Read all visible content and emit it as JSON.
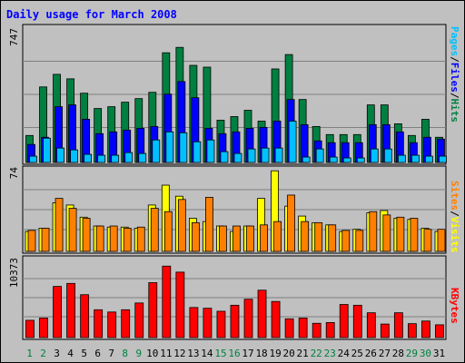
{
  "title": "Daily usage for March 2008",
  "max_labels": {
    "hits": "747",
    "visits": "74",
    "kbytes": "10373"
  },
  "legend": {
    "top": [
      {
        "text": "Pages",
        "color": "#00c0ff"
      },
      {
        "text": "/",
        "color": "#000000"
      },
      {
        "text": "Files",
        "color": "#0000ff"
      },
      {
        "text": "/",
        "color": "#000000"
      },
      {
        "text": "Hits",
        "color": "#008040"
      }
    ],
    "middle": [
      {
        "text": "Sites",
        "color": "#ff8000"
      },
      {
        "text": "/",
        "color": "#000000"
      },
      {
        "text": "Visits",
        "color": "#ffff00"
      }
    ],
    "bottom": [
      {
        "text": "KBytes",
        "color": "#ff0000"
      }
    ]
  },
  "colors": {
    "hits": "#008040",
    "files": "#0000ff",
    "pages": "#00c0ff",
    "visits": "#ffff00",
    "sites": "#ff8000",
    "kbytes": "#ff0000",
    "weekend": "#008040",
    "weekday": "#000000"
  },
  "chart_data": {
    "type": "bar",
    "categories": [
      "1",
      "2",
      "3",
      "4",
      "5",
      "6",
      "7",
      "8",
      "9",
      "10",
      "11",
      "12",
      "13",
      "14",
      "15",
      "16",
      "17",
      "18",
      "19",
      "20",
      "21",
      "22",
      "23",
      "24",
      "25",
      "26",
      "27",
      "28",
      "29",
      "30",
      "31"
    ],
    "weekend_days": [
      "1",
      "2",
      "8",
      "9",
      "15",
      "16",
      "22",
      "23",
      "29",
      "30"
    ],
    "panels": [
      {
        "name": "hits-files-pages",
        "ylim": [
          0,
          747
        ],
        "series": [
          {
            "name": "Hits",
            "values": [
              150,
              420,
              490,
              465,
              385,
              300,
              310,
              335,
              355,
              390,
              610,
              640,
              540,
              530,
              235,
              255,
              290,
              230,
              520,
              600,
              350,
              200,
              155,
              155,
              155,
              320,
              320,
              215,
              150,
              240,
              140
            ]
          },
          {
            "name": "Files",
            "values": [
              100,
              140,
              310,
              320,
              240,
              160,
              170,
              180,
              190,
              200,
              380,
              450,
              360,
              190,
              160,
              170,
              190,
              195,
              230,
              350,
              210,
              120,
              110,
              110,
              110,
              210,
              210,
              170,
              110,
              140,
              130
            ]
          },
          {
            "name": "Pages",
            "values": [
              35,
              135,
              80,
              70,
              45,
              40,
              40,
              55,
              50,
              125,
              170,
              165,
              115,
              125,
              60,
              50,
              75,
              80,
              80,
              230,
              30,
              75,
              30,
              25,
              25,
              75,
              75,
              40,
              40,
              35,
              35
            ]
          }
        ]
      },
      {
        "name": "sites-visits",
        "ylim": [
          0,
          74
        ],
        "series": [
          {
            "name": "Visits",
            "values": [
              18,
              21,
              44,
              42,
              31,
              23,
              22,
              22,
              21,
              42,
              60,
              50,
              30,
              27,
              23,
              18,
              23,
              48,
              73,
              41,
              32,
              26,
              24,
              18,
              20,
              35,
              37,
              30,
              29,
              21,
              18
            ]
          },
          {
            "name": "Sites",
            "values": [
              19,
              21,
              48,
              39,
              30,
              23,
              23,
              21,
              22,
              39,
              36,
              47,
              26,
              49,
              23,
              23,
              23,
              24,
              27,
              51,
              27,
              26,
              24,
              19,
              19,
              36,
              33,
              31,
              30,
              20,
              20
            ]
          }
        ]
      },
      {
        "name": "kbytes",
        "ylim": [
          0,
          10373
        ],
        "series": [
          {
            "name": "KBytes",
            "values": [
              2300,
              2600,
              6800,
              7200,
              5700,
              3700,
              3400,
              3700,
              4600,
              7300,
              9500,
              8700,
              4000,
              3900,
              3500,
              4300,
              5100,
              6300,
              4800,
              2500,
              2600,
              1900,
              2000,
              4400,
              4300,
              3300,
              1800,
              3300,
              1850,
              2200,
              1700
            ]
          }
        ]
      }
    ]
  }
}
